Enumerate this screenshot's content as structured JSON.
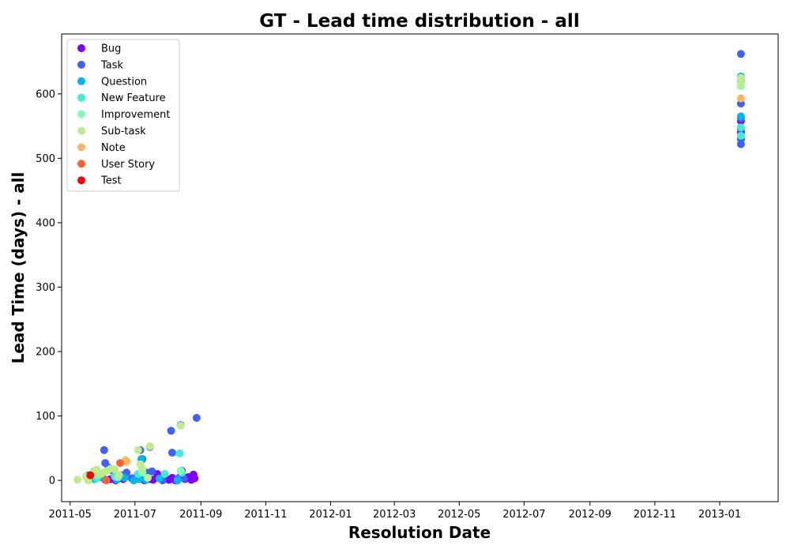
{
  "chart_data": {
    "type": "scatter",
    "title": "GT - Lead time distribution - all",
    "xlabel": "Resolution Date",
    "ylabel": "Lead Time (days) - all",
    "xlim": [
      "2011-04-23",
      "2013-02-25"
    ],
    "ylim": [
      -33,
      693
    ],
    "x_ticks": [
      "2011-05",
      "2011-07",
      "2011-09",
      "2011-11",
      "2012-01",
      "2012-03",
      "2012-05",
      "2012-07",
      "2012-09",
      "2012-11",
      "2013-01"
    ],
    "y_ticks": [
      0,
      100,
      200,
      300,
      400,
      500,
      600
    ],
    "legend_position": "upper-left",
    "grid": false,
    "series": [
      {
        "name": "Bug",
        "color": "#8000ff",
        "points": [
          [
            "2011-05-20",
            3
          ],
          [
            "2011-06-03",
            1
          ],
          [
            "2011-06-08",
            2
          ],
          [
            "2011-06-13",
            0
          ],
          [
            "2011-06-20",
            2
          ],
          [
            "2011-06-28",
            3
          ],
          [
            "2011-07-06",
            5
          ],
          [
            "2011-07-10",
            0
          ],
          [
            "2011-07-14",
            2
          ],
          [
            "2011-07-18",
            1
          ],
          [
            "2011-07-22",
            10
          ],
          [
            "2011-07-26",
            5
          ],
          [
            "2011-08-02",
            1
          ],
          [
            "2011-08-05",
            4
          ],
          [
            "2011-08-08",
            0
          ],
          [
            "2011-08-11",
            3
          ],
          [
            "2011-08-14",
            15
          ],
          [
            "2011-08-17",
            2
          ],
          [
            "2011-08-20",
            5
          ],
          [
            "2011-08-23",
            1
          ],
          [
            "2011-08-25",
            9
          ],
          [
            "2011-08-26",
            3
          ],
          [
            "2013-01-21",
            558
          ],
          [
            "2013-01-21",
            540
          ],
          [
            "2013-01-21",
            530
          ]
        ]
      },
      {
        "name": "Task",
        "color": "#4062fa",
        "points": [
          [
            "2011-05-22",
            5
          ],
          [
            "2011-05-28",
            10
          ],
          [
            "2011-06-02",
            47
          ],
          [
            "2011-06-03",
            27
          ],
          [
            "2011-06-06",
            20
          ],
          [
            "2011-06-10",
            15
          ],
          [
            "2011-06-18",
            8
          ],
          [
            "2011-06-23",
            12
          ],
          [
            "2011-06-28",
            3
          ],
          [
            "2011-07-03",
            7
          ],
          [
            "2011-07-06",
            47
          ],
          [
            "2011-07-08",
            33
          ],
          [
            "2011-07-12",
            12
          ],
          [
            "2011-07-15",
            52
          ],
          [
            "2011-07-17",
            14
          ],
          [
            "2011-07-27",
            0
          ],
          [
            "2011-08-04",
            77
          ],
          [
            "2011-08-05",
            43
          ],
          [
            "2011-08-10",
            2
          ],
          [
            "2011-08-12",
            5
          ],
          [
            "2011-08-13",
            86
          ],
          [
            "2011-08-16",
            3
          ],
          [
            "2011-08-28",
            97
          ],
          [
            "2013-01-21",
            662
          ],
          [
            "2013-01-21",
            585
          ],
          [
            "2013-01-21",
            562
          ],
          [
            "2013-01-21",
            545
          ],
          [
            "2013-01-21",
            522
          ],
          [
            "2013-01-21",
            530
          ]
        ]
      },
      {
        "name": "Question",
        "color": "#00b5eb",
        "points": [
          [
            "2011-05-18",
            8
          ],
          [
            "2011-05-24",
            2
          ],
          [
            "2011-05-30",
            5
          ],
          [
            "2011-06-14",
            1
          ],
          [
            "2011-06-21",
            4
          ],
          [
            "2011-06-30",
            0
          ],
          [
            "2011-07-05",
            2
          ],
          [
            "2011-07-07",
            33
          ],
          [
            "2011-07-11",
            1
          ],
          [
            "2011-07-24",
            3
          ],
          [
            "2011-08-10",
            0
          ],
          [
            "2013-01-21",
            627
          ],
          [
            "2013-01-21",
            565
          ]
        ]
      },
      {
        "name": "New Feature",
        "color": "#40ecd4",
        "points": [
          [
            "2011-05-26",
            3
          ],
          [
            "2011-06-12",
            6
          ],
          [
            "2011-07-04",
            10
          ],
          [
            "2011-07-29",
            10
          ],
          [
            "2011-08-12",
            42
          ],
          [
            "2011-08-14",
            12
          ],
          [
            "2013-01-21",
            620
          ],
          [
            "2013-01-21",
            548
          ],
          [
            "2013-01-21",
            535
          ]
        ]
      },
      {
        "name": "Improvement",
        "color": "#80ffb4",
        "points": [
          [
            "2011-05-27",
            8
          ],
          [
            "2011-06-15",
            5
          ],
          [
            "2011-07-08",
            12
          ],
          [
            "2011-08-13",
            15
          ],
          [
            "2013-01-21",
            612
          ]
        ]
      },
      {
        "name": "Sub-task",
        "color": "#c0eb8d",
        "points": [
          [
            "2011-05-08",
            1
          ],
          [
            "2011-05-16",
            6
          ],
          [
            "2011-05-18",
            0
          ],
          [
            "2011-05-23",
            14
          ],
          [
            "2011-05-26",
            17
          ],
          [
            "2011-05-30",
            10
          ],
          [
            "2011-06-01",
            12
          ],
          [
            "2011-06-05",
            15
          ],
          [
            "2011-06-08",
            18
          ],
          [
            "2011-06-12",
            17
          ],
          [
            "2011-06-16",
            8
          ],
          [
            "2011-06-22",
            32
          ],
          [
            "2011-06-23",
            28
          ],
          [
            "2011-07-04",
            47
          ],
          [
            "2011-07-06",
            25
          ],
          [
            "2011-07-08",
            18
          ],
          [
            "2011-07-13",
            4
          ],
          [
            "2011-07-15",
            53
          ],
          [
            "2011-08-13",
            85
          ],
          [
            "2013-01-21",
            625
          ],
          [
            "2013-01-21",
            615
          ]
        ]
      },
      {
        "name": "Note",
        "color": "#ffb462",
        "points": [
          [
            "2011-06-23",
            30
          ],
          [
            "2013-01-21",
            593
          ]
        ]
      },
      {
        "name": "User Story",
        "color": "#ff6131",
        "points": [
          [
            "2011-06-04",
            0
          ],
          [
            "2011-06-17",
            27
          ]
        ]
      },
      {
        "name": "Test",
        "color": "#ff0000",
        "points": [
          [
            "2011-05-20",
            8
          ]
        ]
      }
    ]
  }
}
